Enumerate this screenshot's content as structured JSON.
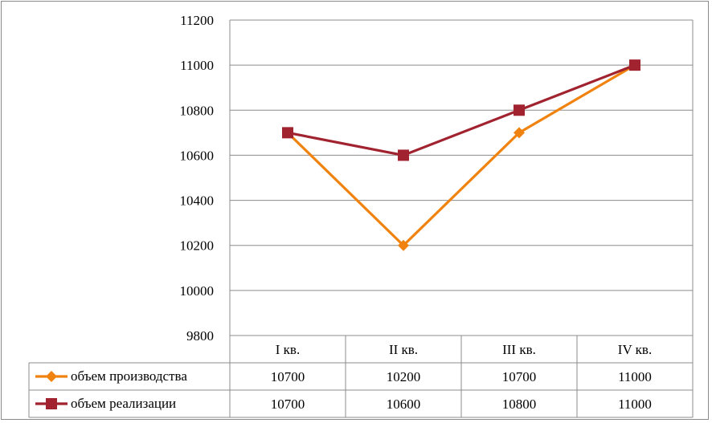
{
  "chart_data": {
    "type": "line",
    "categories": [
      "I кв.",
      "II кв.",
      "III кв.",
      "IV кв."
    ],
    "ylim": [
      9800,
      11200
    ],
    "yticks": [
      "9800",
      "10000",
      "10200",
      "10400",
      "10600",
      "10800",
      "11000",
      "11200"
    ],
    "grid": true,
    "legend_placement": "data table below chart",
    "series": [
      {
        "name": "объем производства",
        "values": [
          10700,
          10200,
          10700,
          11000
        ],
        "display": [
          "10700",
          "10200",
          "10700",
          "11000"
        ],
        "color": "#F0830F",
        "marker": "diamond"
      },
      {
        "name": "объем реализации",
        "values": [
          10700,
          10600,
          10800,
          11000
        ],
        "display": [
          "10700",
          "10600",
          "10800",
          "11000"
        ],
        "color": "#A0232F",
        "marker": "square"
      }
    ]
  }
}
